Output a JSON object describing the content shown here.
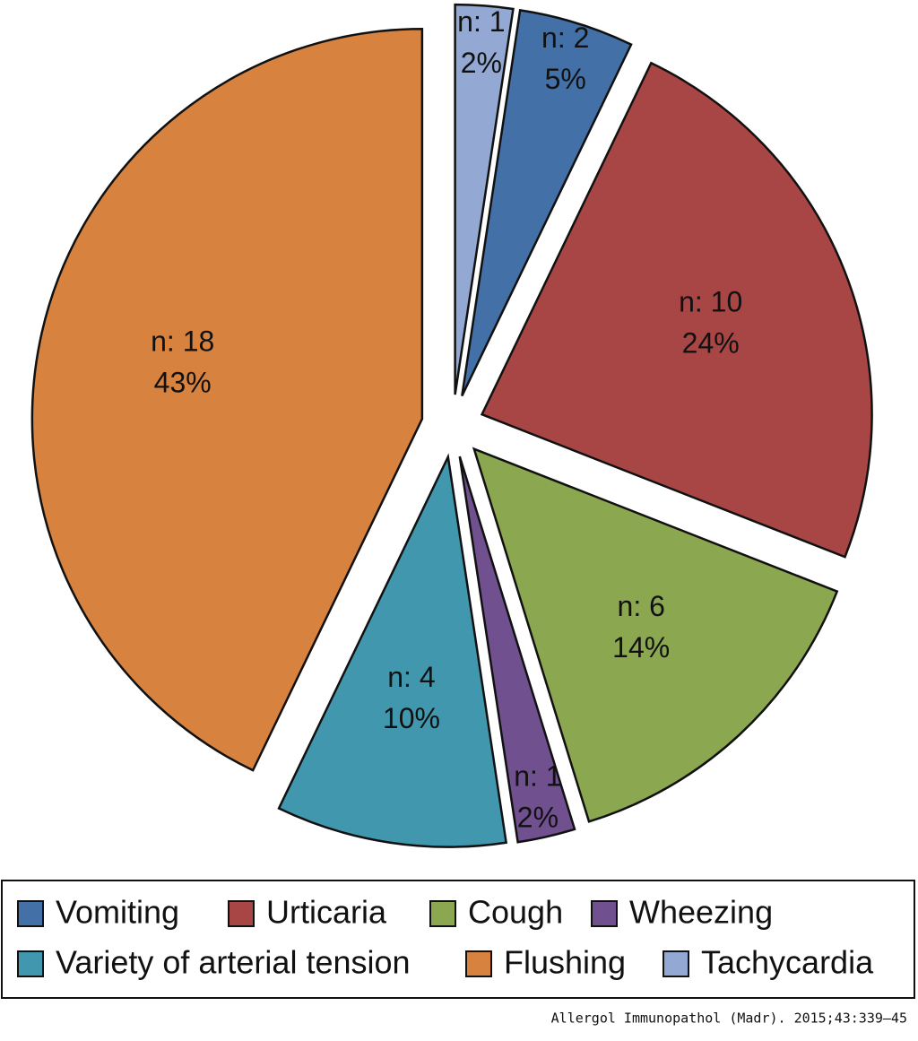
{
  "chart_data": {
    "type": "pie",
    "categories": [
      "Vomiting",
      "Urticaria",
      "Cough",
      "Wheezing",
      "Variety of arterial tension",
      "Flushing",
      "Tachycardia"
    ],
    "values": [
      2,
      10,
      6,
      1,
      4,
      18,
      1
    ],
    "value_labels": [
      "n: 2",
      "n: 10",
      "n: 6",
      "n: 1",
      "n: 4",
      "n: 18",
      "n: 1"
    ],
    "percents": [
      5,
      24,
      14,
      2,
      10,
      43,
      2
    ],
    "percent_labels": [
      "5%",
      "24%",
      "14%",
      "2%",
      "10%",
      "43%",
      "2%"
    ],
    "colors": [
      "#4470a8",
      "#a84645",
      "#8ba74f",
      "#70508f",
      "#4197ae",
      "#d8823f",
      "#93a9d3"
    ],
    "legend": "bottom",
    "exploded": true
  },
  "source": "Allergol  Immunopathol (Madr). 2015;43:339–45"
}
